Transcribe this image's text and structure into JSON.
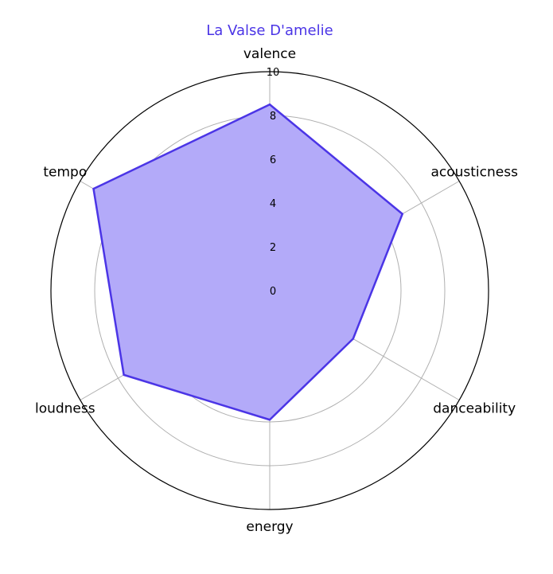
{
  "chart_data": {
    "type": "radar",
    "title": "La Valse D'amelie",
    "categories": [
      "valence",
      "acousticness",
      "danceability",
      "energy",
      "loudness",
      "tempo"
    ],
    "series": [
      {
        "values": [
          8.5,
          7.0,
          4.4,
          5.9,
          7.7,
          9.3
        ]
      }
    ],
    "rlim": [
      0,
      10
    ],
    "rticks": [
      "0",
      "2",
      "4",
      "6",
      "8",
      "10"
    ],
    "grid": true,
    "colors": {
      "line": "#4b35e6",
      "fill": "#b3aaf9",
      "title": "#4b35e6",
      "grid": "#b0b0b0",
      "frame": "#000000"
    }
  }
}
